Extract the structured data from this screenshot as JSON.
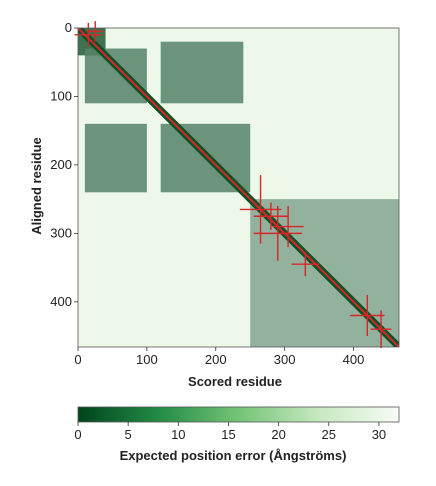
{
  "chart_data": {
    "type": "heatmap",
    "xlabel": "Scored residue",
    "ylabel": "Aligned residue",
    "x_range": [
      0,
      466
    ],
    "y_range": [
      0,
      466
    ],
    "x_ticks": [
      0,
      100,
      200,
      300,
      400
    ],
    "y_ticks": [
      0,
      100,
      200,
      300,
      400
    ],
    "y_axis_direction": "down",
    "colorbar": {
      "label": "Expected position error (Ångströms)",
      "range": [
        0,
        32
      ],
      "ticks": [
        0,
        5,
        10,
        15,
        20,
        25,
        30
      ],
      "low_color": "#00441b",
      "high_color": "#f7fcf5",
      "orientation": "horizontal",
      "position": "bottom"
    },
    "diagonal_color": "#d62728",
    "low_error_blocks": [
      {
        "x": [
          0,
          40
        ],
        "y": [
          0,
          40
        ],
        "error": 4
      },
      {
        "x": [
          10,
          100
        ],
        "y": [
          30,
          110
        ],
        "error": 11
      },
      {
        "x": [
          120,
          240
        ],
        "y": [
          20,
          110
        ],
        "error": 11
      },
      {
        "x": [
          10,
          100
        ],
        "y": [
          140,
          240
        ],
        "error": 11
      },
      {
        "x": [
          120,
          250
        ],
        "y": [
          140,
          240
        ],
        "error": 11
      },
      {
        "x": [
          250,
          470
        ],
        "y": [
          250,
          470
        ],
        "error": 17
      }
    ],
    "error_bar_marks": [
      {
        "x": 15,
        "y": 10,
        "dx": 40,
        "dy": 35
      },
      {
        "x": 25,
        "y": 5,
        "dx": 25,
        "dy": 30
      },
      {
        "x": 265,
        "y": 265,
        "dx": 60,
        "dy": 100
      },
      {
        "x": 280,
        "y": 275,
        "dx": 50,
        "dy": 40
      },
      {
        "x": 290,
        "y": 300,
        "dx": 70,
        "dy": 80
      },
      {
        "x": 305,
        "y": 290,
        "dx": 45,
        "dy": 60
      },
      {
        "x": 330,
        "y": 345,
        "dx": 40,
        "dy": 35
      },
      {
        "x": 420,
        "y": 420,
        "dx": 50,
        "dy": 60
      },
      {
        "x": 440,
        "y": 440,
        "dx": 30,
        "dy": 55
      }
    ]
  }
}
